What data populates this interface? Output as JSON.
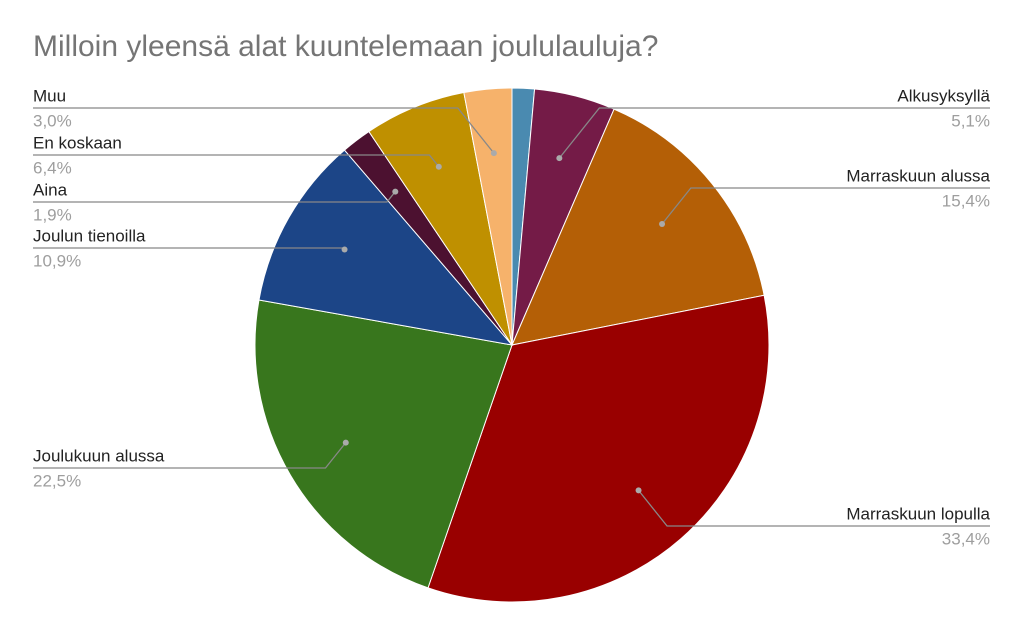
{
  "chart_data": {
    "type": "pie",
    "title": "Milloin yleensä alat kuuntelemaan joululauluja?",
    "categories": [
      null,
      "Alkusyksyllä",
      "Marraskuun alussa",
      "Marraskuun lopulla",
      "Joulukuun alussa",
      "Joulun tienoilla",
      "Aina",
      "En koskaan",
      "Muu"
    ],
    "values": [
      1.4,
      5.1,
      15.4,
      33.4,
      22.5,
      10.9,
      1.9,
      6.4,
      3.0
    ],
    "value_labels": [
      null,
      "5,1%",
      "15,4%",
      "33,4%",
      "22,5%",
      "10,9%",
      "1,9%",
      "6,4%",
      "3,0%"
    ],
    "colors": [
      "#4a8ab0",
      "#741b47",
      "#b45f06",
      "#990000",
      "#38761d",
      "#1c4587",
      "#4c1130",
      "#bf9000",
      "#f6b26b"
    ]
  }
}
